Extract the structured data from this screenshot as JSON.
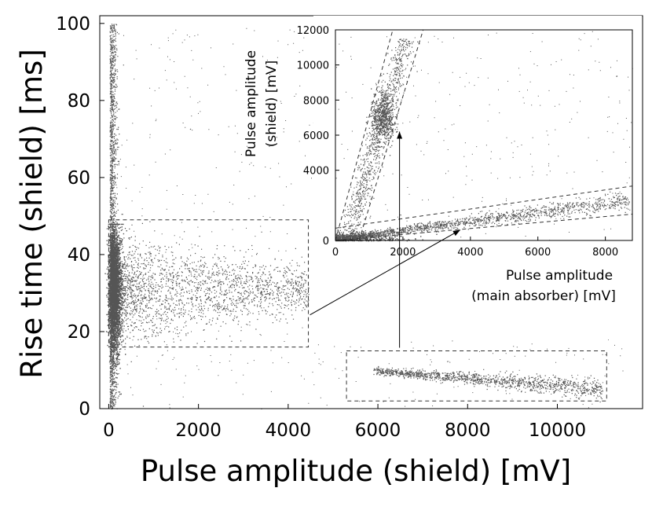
{
  "chart_data": [
    {
      "type": "scatter",
      "name": "main",
      "title": "",
      "xlabel": "Pulse amplitude (shield) [mV]",
      "ylabel": "Rise time (shield) [ms]",
      "xlim": [
        -200,
        11900
      ],
      "ylim": [
        0,
        102
      ],
      "xticks": [
        0,
        2000,
        4000,
        6000,
        8000,
        10000
      ],
      "yticks": [
        0,
        20,
        40,
        60,
        80,
        100
      ],
      "grid": false,
      "clusters": [
        {
          "name": "shield events",
          "x_range": [
            0,
            4400
          ],
          "y_center": 31,
          "y_spread": 12,
          "note": "dense column near 0 mV from 0 to 100 ms"
        },
        {
          "name": "main absorber events",
          "x_range": [
            5900,
            11000
          ],
          "y_start": 10,
          "y_end": 5
        }
      ],
      "selection_boxes": [
        {
          "x_range": [
            0,
            4450
          ],
          "y_range": [
            16,
            49
          ]
        },
        {
          "x_range": [
            5300,
            11100
          ],
          "y_range": [
            2,
            15
          ]
        }
      ]
    },
    {
      "type": "scatter",
      "name": "inset",
      "xlabel_line1": "Pulse amplitude",
      "xlabel_line2": "(main absorber) [mV]",
      "ylabel_line1": "Pulse amplitude",
      "ylabel_line2": "(shield) [mV]",
      "xlim": [
        0,
        8800
      ],
      "ylim": [
        0,
        12000
      ],
      "xticks": [
        0,
        2000,
        4000,
        6000,
        8000
      ],
      "yticks": [
        0,
        4000,
        6000,
        8000,
        10000,
        12000
      ],
      "grid": false,
      "bands": [
        {
          "name": "shield band",
          "x_at_y0": [
            0,
            700
          ],
          "x_at_ytop": [
            1700,
            2600
          ],
          "cluster_center": [
            1400,
            7000
          ]
        },
        {
          "name": "main absorber band",
          "y_at_x0": [
            0,
            700
          ],
          "y_at_xmax": [
            1500,
            3100
          ]
        }
      ]
    }
  ]
}
